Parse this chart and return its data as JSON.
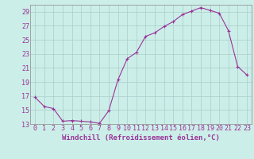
{
  "x": [
    0,
    1,
    2,
    3,
    4,
    5,
    6,
    7,
    8,
    9,
    10,
    11,
    12,
    13,
    14,
    15,
    16,
    17,
    18,
    19,
    20,
    21,
    22,
    23
  ],
  "y": [
    16.8,
    15.5,
    15.2,
    13.4,
    13.5,
    13.4,
    13.3,
    13.1,
    14.9,
    19.3,
    22.3,
    23.2,
    25.5,
    26.0,
    26.9,
    27.6,
    28.6,
    29.1,
    29.6,
    29.2,
    28.8,
    26.3,
    21.2,
    20.0
  ],
  "line_color": "#993399",
  "marker": "+",
  "bg_color": "#cceee8",
  "grid_color": "#aacccc",
  "xlabel": "Windchill (Refroidissement éolien,°C)",
  "ylim": [
    13,
    30
  ],
  "xlim": [
    -0.5,
    23.5
  ],
  "yticks": [
    13,
    15,
    17,
    19,
    21,
    23,
    25,
    27,
    29
  ],
  "xticks": [
    0,
    1,
    2,
    3,
    4,
    5,
    6,
    7,
    8,
    9,
    10,
    11,
    12,
    13,
    14,
    15,
    16,
    17,
    18,
    19,
    20,
    21,
    22,
    23
  ],
  "xlabel_fontsize": 6.5,
  "tick_fontsize": 6,
  "line_width": 0.8,
  "marker_size": 3,
  "marker_edge_width": 0.8
}
